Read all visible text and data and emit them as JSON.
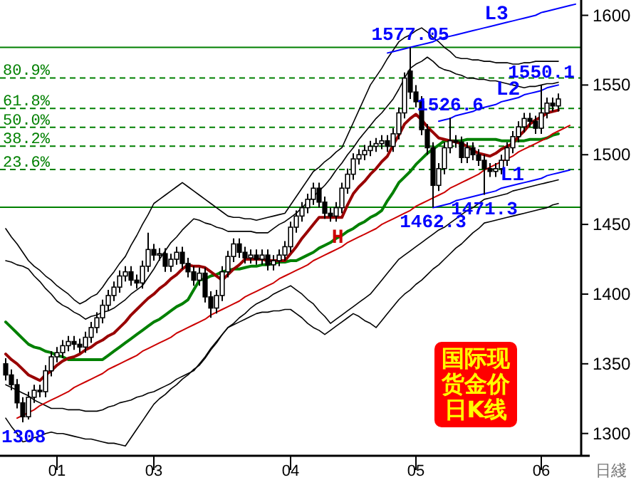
{
  "chart_data": {
    "type": "candlestick",
    "title": "国际现货金价日K线",
    "xlabel": "日綫",
    "ylim": [
      1284,
      1611
    ],
    "yticks": [
      1300,
      1350,
      1400,
      1450,
      1500,
      1550,
      1600
    ],
    "categories": [
      null,
      null,
      null,
      null,
      null,
      null,
      null,
      null,
      null,
      "01",
      null,
      null,
      null,
      null,
      null,
      null,
      null,
      null,
      null,
      null,
      null,
      null,
      null,
      null,
      null,
      null,
      "03",
      null,
      null,
      null,
      null,
      null,
      null,
      null,
      null,
      null,
      null,
      null,
      null,
      null,
      null,
      null,
      null,
      null,
      null,
      null,
      null,
      null,
      null,
      null,
      "04",
      null,
      null,
      null,
      null,
      null,
      null,
      null,
      null,
      null,
      null,
      null,
      null,
      null,
      null,
      null,
      null,
      null,
      null,
      null,
      null,
      null,
      "05",
      null,
      null,
      null,
      null,
      null,
      null,
      null,
      null,
      null,
      null,
      null,
      null,
      null,
      null,
      null,
      null,
      null,
      null,
      null,
      null,
      null,
      "06",
      null,
      null,
      null,
      null,
      null,
      null
    ],
    "ohlc": [
      [
        1350,
        1354,
        1338,
        1342
      ],
      [
        1342,
        1346,
        1331,
        1335
      ],
      [
        1335,
        1339,
        1318,
        1322
      ],
      [
        1322,
        1326,
        1308,
        1312
      ],
      [
        1312,
        1330,
        1310,
        1326
      ],
      [
        1326,
        1335,
        1322,
        1331
      ],
      [
        1331,
        1335,
        1326,
        1330
      ],
      [
        1330,
        1349,
        1326,
        1345
      ],
      [
        1345,
        1359,
        1341,
        1355
      ],
      [
        1355,
        1362,
        1351,
        1358
      ],
      [
        1358,
        1367,
        1354,
        1363
      ],
      [
        1363,
        1370,
        1359,
        1366
      ],
      [
        1366,
        1370,
        1360,
        1364
      ],
      [
        1364,
        1368,
        1358,
        1362
      ],
      [
        1362,
        1373,
        1358,
        1369
      ],
      [
        1369,
        1380,
        1365,
        1376
      ],
      [
        1376,
        1387,
        1372,
        1383
      ],
      [
        1383,
        1396,
        1379,
        1392
      ],
      [
        1392,
        1403,
        1388,
        1399
      ],
      [
        1399,
        1409,
        1395,
        1405
      ],
      [
        1405,
        1417,
        1401,
        1413
      ],
      [
        1413,
        1420,
        1409,
        1416
      ],
      [
        1416,
        1420,
        1406,
        1410
      ],
      [
        1410,
        1414,
        1404,
        1408
      ],
      [
        1408,
        1424,
        1404,
        1420
      ],
      [
        1420,
        1444,
        1416,
        1432
      ],
      [
        1432,
        1436,
        1424,
        1428
      ],
      [
        1428,
        1433,
        1424,
        1429
      ],
      [
        1429,
        1433,
        1416,
        1420
      ],
      [
        1420,
        1429,
        1416,
        1425
      ],
      [
        1425,
        1434,
        1421,
        1430
      ],
      [
        1430,
        1434,
        1418,
        1422
      ],
      [
        1422,
        1426,
        1412,
        1416
      ],
      [
        1416,
        1420,
        1406,
        1410
      ],
      [
        1410,
        1419,
        1406,
        1415
      ],
      [
        1415,
        1419,
        1394,
        1398
      ],
      [
        1398,
        1402,
        1383,
        1390
      ],
      [
        1390,
        1403,
        1386,
        1399
      ],
      [
        1399,
        1420,
        1395,
        1416
      ],
      [
        1416,
        1431,
        1412,
        1427
      ],
      [
        1427,
        1440,
        1423,
        1436
      ],
      [
        1436,
        1440,
        1426,
        1430
      ],
      [
        1430,
        1434,
        1422,
        1426
      ],
      [
        1426,
        1432,
        1422,
        1428
      ],
      [
        1428,
        1432,
        1421,
        1425
      ],
      [
        1425,
        1432,
        1421,
        1428
      ],
      [
        1428,
        1432,
        1417,
        1421
      ],
      [
        1421,
        1428,
        1417,
        1424
      ],
      [
        1424,
        1432,
        1420,
        1428
      ],
      [
        1428,
        1438,
        1424,
        1434
      ],
      [
        1434,
        1452,
        1430,
        1448
      ],
      [
        1448,
        1460,
        1444,
        1456
      ],
      [
        1456,
        1466,
        1452,
        1462
      ],
      [
        1462,
        1472,
        1458,
        1468
      ],
      [
        1468,
        1480,
        1464,
        1476
      ],
      [
        1476,
        1480,
        1462,
        1466
      ],
      [
        1466,
        1470,
        1454,
        1458
      ],
      [
        1458,
        1462,
        1452,
        1456
      ],
      [
        1456,
        1466,
        1452,
        1462
      ],
      [
        1462,
        1480,
        1458,
        1476
      ],
      [
        1476,
        1490,
        1472,
        1486
      ],
      [
        1486,
        1501,
        1482,
        1497
      ],
      [
        1497,
        1504,
        1493,
        1500
      ],
      [
        1500,
        1507,
        1496,
        1503
      ],
      [
        1503,
        1510,
        1499,
        1506
      ],
      [
        1506,
        1512,
        1502,
        1508
      ],
      [
        1508,
        1514,
        1504,
        1510
      ],
      [
        1510,
        1514,
        1502,
        1506
      ],
      [
        1506,
        1519,
        1502,
        1515
      ],
      [
        1515,
        1534,
        1511,
        1530
      ],
      [
        1530,
        1559,
        1526,
        1555
      ],
      [
        1560,
        1577.05,
        1540,
        1545
      ],
      [
        1545,
        1550,
        1534,
        1538
      ],
      [
        1538,
        1542,
        1514,
        1518
      ],
      [
        1518,
        1522,
        1500,
        1505
      ],
      [
        1505,
        1509,
        1462.3,
        1478
      ],
      [
        1478,
        1494,
        1474,
        1490
      ],
      [
        1490,
        1509,
        1486,
        1505
      ],
      [
        1505,
        1526.6,
        1501,
        1510
      ],
      [
        1510,
        1514,
        1505,
        1509
      ],
      [
        1509,
        1513,
        1494,
        1498
      ],
      [
        1498,
        1509,
        1494,
        1505
      ],
      [
        1505,
        1509,
        1496,
        1500
      ],
      [
        1500,
        1504,
        1492,
        1496
      ],
      [
        1496,
        1500,
        1471.3,
        1490
      ],
      [
        1490,
        1494,
        1484,
        1488
      ],
      [
        1488,
        1494,
        1484,
        1490
      ],
      [
        1490,
        1500,
        1486,
        1496
      ],
      [
        1496,
        1509,
        1492,
        1505
      ],
      [
        1505,
        1517,
        1501,
        1513
      ],
      [
        1513,
        1524,
        1509,
        1520
      ],
      [
        1520,
        1530,
        1516,
        1526
      ],
      [
        1526,
        1530,
        1520,
        1524
      ],
      [
        1524,
        1528,
        1515,
        1519
      ],
      [
        1519,
        1550.1,
        1515,
        1530
      ],
      [
        1530,
        1541,
        1526,
        1537
      ],
      [
        1537,
        1541,
        1531,
        1535
      ],
      [
        1535,
        1544,
        1531,
        1540
      ],
      null,
      null,
      null
    ],
    "series": [
      {
        "type": "line",
        "color": "#000000",
        "values": [
          1447,
          1441,
          1436,
          1430,
          1424,
          1420,
          1417,
          1413,
          1410,
          1406,
          1403,
          1400,
          1396,
          1393,
          1395,
          1398,
          1400,
          1405,
          1411,
          1416,
          1422,
          1427,
          1435,
          1442,
          1450,
          1457,
          1465,
          1468,
          1471,
          1474,
          1477,
          1480,
          1477,
          1474,
          1471,
          1468,
          1465,
          1462,
          1459,
          1456,
          1455,
          1455,
          1454,
          1454,
          1453,
          1454,
          1455,
          1456,
          1457,
          1458,
          1464,
          1470,
          1476,
          1482,
          1488,
          1491,
          1495,
          1498,
          1502,
          1505,
          1514,
          1523,
          1532,
          1541,
          1550,
          1556,
          1562,
          1569,
          1575,
          1581,
          1584,
          1586,
          1589,
          1591,
          1588,
          1584,
          1581,
          1577,
          1574,
          1570,
          1569,
          1569,
          1568,
          1568,
          1567,
          1567,
          1566,
          1566,
          1566,
          1565,
          1565,
          1566,
          1566,
          1567,
          1567,
          1567,
          1567,
          1567,
          null,
          null,
          null
        ]
      },
      {
        "type": "line",
        "color": "#000000",
        "values": [
          1424,
          1423,
          1421,
          1420,
          1418,
          1413,
          1409,
          1404,
          1400,
          1395,
          1392,
          1390,
          1387,
          1385,
          1382,
          1384,
          1385,
          1387,
          1388,
          1390,
          1393,
          1396,
          1400,
          1403,
          1406,
          1412,
          1418,
          1425,
          1431,
          1437,
          1441,
          1446,
          1450,
          1454,
          1453,
          1451,
          1450,
          1448,
          1447,
          1445,
          1445,
          1445,
          1445,
          1445,
          1444,
          1444,
          1444,
          1447,
          1450,
          1452,
          1455,
          1458,
          1462,
          1466,
          1470,
          1474,
          1478,
          1483,
          1489,
          1494,
          1500,
          1505,
          1511,
          1516,
          1521,
          1526,
          1530,
          1535,
          1540,
          1547,
          1555,
          1562,
          1565,
          1567,
          1570,
          1567,
          1563,
          1561,
          1560,
          1558,
          1557,
          1555,
          1555,
          1554,
          1554,
          1553,
          1553,
          1552,
          1551,
          1550,
          1549,
          1548,
          1549,
          1549,
          1550,
          1551,
          1551,
          1552,
          null,
          null,
          null
        ]
      },
      {
        "type": "line",
        "color": "#000000",
        "values": [
          1335,
          1333,
          1331,
          1329,
          1327,
          1324,
          1322,
          1320,
          1318,
          1318,
          1318,
          1317,
          1317,
          1317,
          1316,
          1316,
          1316,
          1317,
          1319,
          1320,
          1322,
          1323,
          1324,
          1326,
          1327,
          1329,
          1330,
          1332,
          1334,
          1336,
          1339,
          1341,
          1343,
          1345,
          1350,
          1355,
          1361,
          1366,
          1371,
          1376,
          1379,
          1383,
          1386,
          1390,
          1393,
          1395,
          1397,
          1400,
          1402,
          1404,
          1406,
          1403,
          1400,
          1396,
          1393,
          1388,
          1384,
          1379,
          1382,
          1385,
          1388,
          1391,
          1394,
          1397,
          1400,
          1405,
          1410,
          1415,
          1420,
          1425,
          1428,
          1431,
          1434,
          1437,
          1440,
          1443,
          1446,
          1448,
          1451,
          1454,
          1457,
          1460,
          1462,
          1465,
          1468,
          1469,
          1470,
          1471,
          1472,
          1474,
          1475,
          1476,
          1477,
          1478,
          1479,
          1480,
          1481,
          1482,
          null,
          null,
          null
        ]
      },
      {
        "type": "line",
        "color": "#000000",
        "values": [
          1311,
          1305,
          1300,
          1294,
          1295,
          1297,
          1298,
          1300,
          1301,
          1300,
          1300,
          1299,
          1298,
          1297,
          1296,
          1296,
          1295,
          1294,
          1293,
          1293,
          1292,
          1291,
          1297,
          1303,
          1309,
          1315,
          1321,
          1325,
          1328,
          1332,
          1335,
          1339,
          1342,
          1346,
          1349,
          1354,
          1360,
          1365,
          1371,
          1376,
          1378,
          1380,
          1382,
          1384,
          1386,
          1387,
          1387,
          1388,
          1388,
          1389,
          1389,
          1386,
          1383,
          1379,
          1376,
          1374,
          1371,
          1374,
          1377,
          1380,
          1383,
          1386,
          1384,
          1381,
          1379,
          1376,
          1381,
          1386,
          1391,
          1396,
          1400,
          1403,
          1407,
          1410,
          1414,
          1418,
          1421,
          1425,
          1429,
          1433,
          1436,
          1440,
          1444,
          1447,
          1451,
          1452,
          1453,
          1454,
          1455,
          1456,
          1457,
          1458,
          1459,
          1460,
          1461,
          1462,
          1464,
          1465,
          null,
          null,
          null
        ]
      },
      {
        "type": "line",
        "color": "#008000",
        "values": [
          1380,
          1376,
          1372,
          1368,
          1364,
          1362,
          1361,
          1359,
          1358,
          1356,
          1355,
          1353,
          1353,
          1353,
          1353,
          1353,
          1353,
          1353,
          1356,
          1359,
          1362,
          1365,
          1368,
          1371,
          1374,
          1377,
          1380,
          1382,
          1385,
          1388,
          1391,
          1393,
          1396,
          1403,
          1410,
          1411,
          1413,
          1414,
          1416,
          1417,
          1418,
          1418,
          1419,
          1420,
          1420,
          1421,
          1421,
          1422,
          1423,
          1423,
          1424,
          1424,
          1426,
          1428,
          1430,
          1433,
          1435,
          1437,
          1440,
          1442,
          1445,
          1447,
          1450,
          1452,
          1455,
          1457,
          1460,
          1467,
          1473,
          1480,
          1484,
          1488,
          1493,
          1497,
          1501,
          1504,
          1507,
          1510,
          1510,
          1510,
          1510,
          1511,
          1511,
          1511,
          1511,
          1511,
          1511,
          1510,
          1510,
          1510,
          1510,
          1510,
          1511,
          1511,
          1511,
          1512,
          1514,
          1515,
          null,
          null,
          null
        ]
      },
      {
        "type": "line",
        "color": "#990000",
        "values": [
          1357,
          1353,
          1350,
          1346,
          1342,
          1340,
          1338,
          1342,
          1345,
          1349,
          1352,
          1354,
          1355,
          1357,
          1360,
          1362,
          1365,
          1367,
          1370,
          1372,
          1376,
          1380,
          1385,
          1389,
          1393,
          1397,
          1400,
          1404,
          1407,
          1411,
          1414,
          1418,
          1421,
          1420,
          1420,
          1419,
          1416,
          1413,
          1410,
          1414,
          1418,
          1421,
          1425,
          1425,
          1425,
          1425,
          1424,
          1424,
          1424,
          1424,
          1429,
          1434,
          1440,
          1445,
          1450,
          1455,
          1455,
          1455,
          1455,
          1455,
          1464,
          1472,
          1477,
          1481,
          1486,
          1490,
          1495,
          1499,
          1507,
          1514,
          1522,
          1526,
          1529,
          1525,
          1520,
          1516,
          1512,
          1511,
          1510,
          1509,
          1508,
          1506,
          1503,
          1501,
          1500,
          1499,
          1501,
          1504,
          1506,
          1508,
          1513,
          1517,
          1522,
          1525,
          1527,
          1530,
          1531,
          1532,
          null,
          null,
          null
        ]
      },
      {
        "type": "line",
        "name": "L3",
        "color": "#0000ff",
        "values": [
          null,
          null,
          null,
          null,
          null,
          null,
          null,
          null,
          null,
          null,
          null,
          null,
          null,
          null,
          null,
          null,
          null,
          null,
          null,
          null,
          null,
          null,
          null,
          null,
          null,
          null,
          null,
          null,
          null,
          null,
          null,
          null,
          null,
          null,
          null,
          null,
          null,
          null,
          null,
          null,
          null,
          null,
          null,
          null,
          null,
          null,
          null,
          null,
          null,
          null,
          null,
          null,
          null,
          null,
          null,
          null,
          null,
          null,
          null,
          null,
          null,
          null,
          null,
          null,
          null,
          null,
          null,
          1573,
          1574,
          1575,
          1576,
          1577,
          1578,
          1579,
          1580,
          1581,
          1583,
          1584,
          1585,
          1586,
          1587,
          1588,
          1589,
          1590,
          1591,
          1592,
          1593,
          1594,
          1595,
          1596,
          1597,
          1598,
          1599,
          1600,
          1602,
          1603,
          1604,
          1605,
          1606,
          1607,
          1608
        ]
      },
      {
        "type": "line",
        "name": "L2",
        "color": "#0000ff",
        "values": [
          null,
          null,
          null,
          null,
          null,
          null,
          null,
          null,
          null,
          null,
          null,
          null,
          null,
          null,
          null,
          null,
          null,
          null,
          null,
          null,
          null,
          null,
          null,
          null,
          null,
          null,
          null,
          null,
          null,
          null,
          null,
          null,
          null,
          null,
          null,
          null,
          null,
          null,
          null,
          null,
          null,
          null,
          null,
          null,
          null,
          null,
          null,
          null,
          null,
          null,
          null,
          null,
          null,
          null,
          null,
          null,
          null,
          null,
          null,
          null,
          null,
          null,
          null,
          null,
          null,
          null,
          null,
          null,
          null,
          null,
          null,
          null,
          null,
          null,
          null,
          null,
          1524,
          1525,
          1526,
          1528,
          1529,
          1530,
          1531,
          1533,
          1534,
          1535,
          1536,
          1538,
          1539,
          1540,
          1541,
          1543,
          1544,
          1545,
          1546,
          1548,
          1549,
          1550,
          null,
          null,
          null
        ]
      },
      {
        "type": "line",
        "name": "L1",
        "color": "#0000ff",
        "values": [
          null,
          null,
          null,
          null,
          null,
          null,
          null,
          null,
          null,
          null,
          null,
          null,
          null,
          null,
          null,
          null,
          null,
          null,
          null,
          null,
          null,
          null,
          null,
          null,
          null,
          null,
          null,
          null,
          null,
          null,
          null,
          null,
          null,
          null,
          null,
          null,
          null,
          null,
          null,
          null,
          null,
          null,
          null,
          null,
          null,
          null,
          null,
          null,
          null,
          null,
          null,
          null,
          null,
          null,
          null,
          null,
          null,
          null,
          null,
          null,
          null,
          null,
          null,
          null,
          null,
          null,
          null,
          null,
          null,
          null,
          null,
          null,
          null,
          null,
          null,
          1462,
          1463,
          1464,
          1465,
          1467,
          1468,
          1469,
          1470,
          1471,
          1472,
          1473,
          1474,
          1476,
          1477,
          1478,
          1479,
          1480,
          1481,
          1482,
          1483,
          1485,
          1486,
          1487,
          1488,
          1489,
          null
        ]
      },
      {
        "type": "line",
        "name": "H",
        "color": "#cc0000",
        "values": [
          null,
          null,
          1311,
          1313,
          1315,
          1317,
          1320,
          1322,
          1324,
          1326,
          1328,
          1330,
          1333,
          1335,
          1337,
          1339,
          1341,
          1343,
          1346,
          1348,
          1350,
          1352,
          1354,
          1356,
          1359,
          1361,
          1363,
          1365,
          1367,
          1369,
          1372,
          1374,
          1376,
          1378,
          1380,
          1382,
          1385,
          1387,
          1389,
          1391,
          1393,
          1395,
          1398,
          1400,
          1402,
          1404,
          1406,
          1408,
          1411,
          1413,
          1415,
          1417,
          1419,
          1421,
          1424,
          1426,
          1428,
          1430,
          1432,
          1434,
          1437,
          1439,
          1441,
          1443,
          1445,
          1447,
          1450,
          1452,
          1454,
          1456,
          1458,
          1460,
          1463,
          1465,
          1467,
          1469,
          1471,
          1473,
          1476,
          1478,
          1480,
          1482,
          1484,
          1486,
          1489,
          1491,
          1493,
          1495,
          1497,
          1499,
          1502,
          1504,
          1506,
          1508,
          1510,
          1512,
          1515,
          1517,
          1519,
          1521,
          null
        ]
      }
    ],
    "ref_lines": [
      {
        "axis": "y",
        "value": 1577.05,
        "color": "#008000",
        "line_style": "solid"
      },
      {
        "axis": "y",
        "value": 1555.1,
        "color": "#008000",
        "line_style": "dashed"
      },
      {
        "axis": "y",
        "value": 1533.2,
        "color": "#008000",
        "line_style": "dashed"
      },
      {
        "axis": "y",
        "value": 1519.7,
        "color": "#008000",
        "line_style": "dashed"
      },
      {
        "axis": "y",
        "value": 1506.1,
        "color": "#008000",
        "line_style": "dashed"
      },
      {
        "axis": "y",
        "value": 1489.4,
        "color": "#008000",
        "line_style": "dashed"
      },
      {
        "axis": "y",
        "value": 1462.3,
        "color": "#008000",
        "line_style": "solid"
      }
    ],
    "annotations": [
      {
        "text": "80.9%",
        "y": 1555.1
      },
      {
        "text": "61.8%",
        "y": 1533.2
      },
      {
        "text": "50.0%",
        "y": 1519.7
      },
      {
        "text": "38.2%",
        "y": 1506.1
      },
      {
        "text": "23.6%",
        "y": 1489.4
      },
      {
        "text": "1577.05",
        "y": 1577.05
      },
      {
        "text": "1550.1",
        "y": 1550.1
      },
      {
        "text": "1526.6",
        "y": 1526.6
      },
      {
        "text": "1462.3",
        "y": 1462.3
      },
      {
        "text": "1471.3",
        "y": 1471.3
      },
      {
        "text": "1308",
        "y": 1308
      }
    ]
  }
}
